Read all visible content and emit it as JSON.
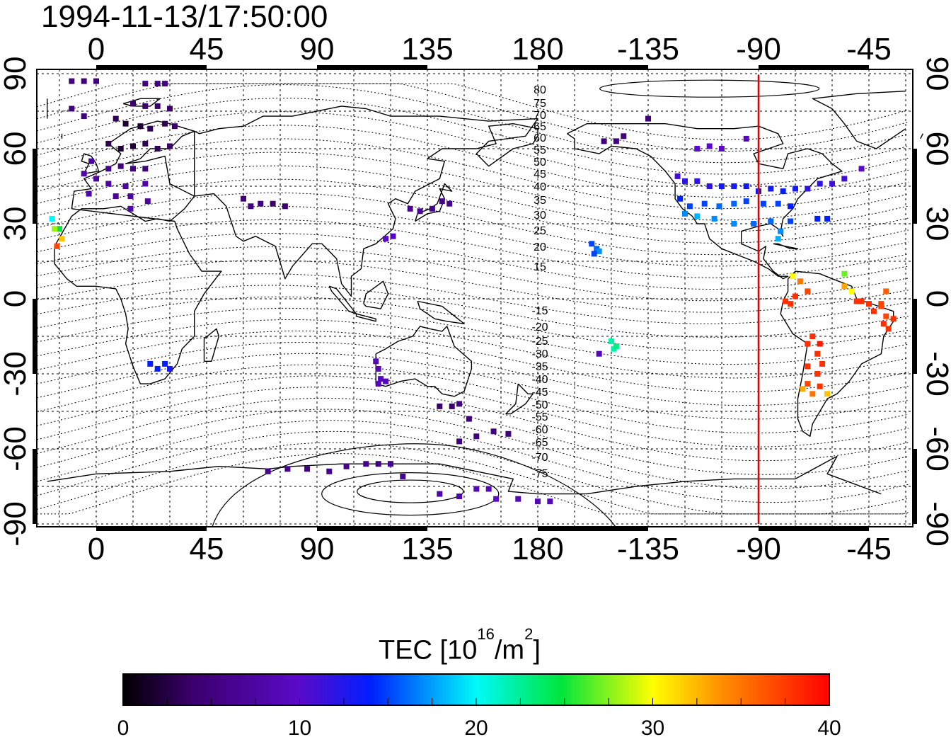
{
  "title": "1994-11-13/17:50:00",
  "map": {
    "lon_ticks": [
      "0",
      "45",
      "90",
      "135",
      "180",
      "-135",
      "-90",
      "-45"
    ],
    "lat_ticks": [
      "90",
      "60",
      "30",
      "0",
      "-30",
      "-60",
      "-90"
    ],
    "meridian_line_lon": -90,
    "meridian_line_color": "#e00000",
    "contour_labels": [
      "80",
      "75",
      "70",
      "65",
      "60",
      "55",
      "50",
      "45",
      "40",
      "35",
      "30",
      "25",
      "20",
      "15",
      "-15",
      "-20",
      "-25",
      "-30",
      "-35",
      "-40",
      "-45",
      "-50",
      "-55",
      "-60",
      "-65",
      "-70",
      "-75"
    ]
  },
  "colorbar": {
    "title_prefix": "TEC  [10",
    "title_sup1": "16",
    "title_mid": "/m",
    "title_sup2": "2",
    "title_suffix": "]",
    "tick_labels": [
      "0",
      "10",
      "20",
      "30",
      "40"
    ],
    "vmin": 0,
    "vmax": 40
  },
  "tec_points": [
    {
      "lon": -10,
      "lat": 87,
      "tec": 5
    },
    {
      "lon": -5,
      "lat": 87,
      "tec": 5
    },
    {
      "lon": 0,
      "lat": 87,
      "tec": 5
    },
    {
      "lon": 20,
      "lat": 86,
      "tec": 5
    },
    {
      "lon": 25,
      "lat": 86,
      "tec": 5
    },
    {
      "lon": 28,
      "lat": 86,
      "tec": 5
    },
    {
      "lon": -10,
      "lat": 76,
      "tec": 5
    },
    {
      "lon": -5,
      "lat": 73,
      "tec": 5
    },
    {
      "lon": 15,
      "lat": 78,
      "tec": 4
    },
    {
      "lon": 20,
      "lat": 77,
      "tec": 4
    },
    {
      "lon": 25,
      "lat": 77,
      "tec": 4
    },
    {
      "lon": 30,
      "lat": 76,
      "tec": 4
    },
    {
      "lon": 8,
      "lat": 72,
      "tec": 3
    },
    {
      "lon": 12,
      "lat": 70,
      "tec": 2
    },
    {
      "lon": 18,
      "lat": 69,
      "tec": 2
    },
    {
      "lon": 22,
      "lat": 68,
      "tec": 3
    },
    {
      "lon": 28,
      "lat": 70,
      "tec": 3
    },
    {
      "lon": 32,
      "lat": 69,
      "tec": 4
    },
    {
      "lon": 5,
      "lat": 62,
      "tec": 3
    },
    {
      "lon": 10,
      "lat": 60,
      "tec": 2
    },
    {
      "lon": 15,
      "lat": 61,
      "tec": 2
    },
    {
      "lon": 20,
      "lat": 62,
      "tec": 3
    },
    {
      "lon": 25,
      "lat": 60,
      "tec": 3
    },
    {
      "lon": 30,
      "lat": 61,
      "tec": 4
    },
    {
      "lon": -2,
      "lat": 55,
      "tec": 7
    },
    {
      "lon": 5,
      "lat": 52,
      "tec": 6
    },
    {
      "lon": 10,
      "lat": 53,
      "tec": 5
    },
    {
      "lon": 15,
      "lat": 52,
      "tec": 5
    },
    {
      "lon": 20,
      "lat": 52,
      "tec": 5
    },
    {
      "lon": -5,
      "lat": 50,
      "tec": 8
    },
    {
      "lon": 0,
      "lat": 48,
      "tec": 7
    },
    {
      "lon": 5,
      "lat": 46,
      "tec": 7
    },
    {
      "lon": 12,
      "lat": 45,
      "tec": 7
    },
    {
      "lon": 20,
      "lat": 46,
      "tec": 8
    },
    {
      "lon": -3,
      "lat": 42,
      "tec": 8
    },
    {
      "lon": 8,
      "lat": 41,
      "tec": 7
    },
    {
      "lon": 14,
      "lat": 41,
      "tec": 7
    },
    {
      "lon": 21,
      "lat": 39,
      "tec": 7
    },
    {
      "lon": 14,
      "lat": 36,
      "tec": 8
    },
    {
      "lon": 63,
      "lat": 37,
      "tec": 5
    },
    {
      "lon": 67,
      "lat": 38,
      "tec": 5
    },
    {
      "lon": 72,
      "lat": 38,
      "tec": 4
    },
    {
      "lon": 77,
      "lat": 37,
      "tec": 4
    },
    {
      "lon": 60,
      "lat": 40,
      "tec": 5
    },
    {
      "lon": 128,
      "lat": 36,
      "tec": 7
    },
    {
      "lon": 132,
      "lat": 35,
      "tec": 7
    },
    {
      "lon": 137,
      "lat": 36,
      "tec": 6
    },
    {
      "lon": 141,
      "lat": 39,
      "tec": 6
    },
    {
      "lon": 144,
      "lat": 38,
      "tec": 6
    },
    {
      "lon": 121,
      "lat": 25,
      "tec": 9
    },
    {
      "lon": 118,
      "lat": 24,
      "tec": 10
    },
    {
      "lon": -15,
      "lat": 28,
      "tec": 25
    },
    {
      "lon": -17,
      "lat": 28,
      "tec": 28
    },
    {
      "lon": -14,
      "lat": 24,
      "tec": 32
    },
    {
      "lon": -18,
      "lat": 32,
      "tec": 20
    },
    {
      "lon": -16,
      "lat": 21,
      "tec": 37
    },
    {
      "lon": 22,
      "lat": -26,
      "tec": 14
    },
    {
      "lon": 28,
      "lat": -26,
      "tec": 14
    },
    {
      "lon": 25,
      "lat": -28,
      "tec": 14
    },
    {
      "lon": 30,
      "lat": -28,
      "tec": 13
    },
    {
      "lon": 114,
      "lat": -25,
      "tec": 9
    },
    {
      "lon": 115,
      "lat": -28,
      "tec": 9
    },
    {
      "lon": 116,
      "lat": -32,
      "tec": 9
    },
    {
      "lon": 118,
      "lat": -33,
      "tec": 9
    },
    {
      "lon": 115,
      "lat": -34,
      "tec": 9
    },
    {
      "lon": 140,
      "lat": -43,
      "tec": 4
    },
    {
      "lon": 145,
      "lat": -43,
      "tec": 4
    },
    {
      "lon": 148,
      "lat": -42,
      "tec": 5
    },
    {
      "lon": 152,
      "lat": -48,
      "tec": 5
    },
    {
      "lon": 148,
      "lat": -57,
      "tec": 5
    },
    {
      "lon": 155,
      "lat": -55,
      "tec": 5
    },
    {
      "lon": 162,
      "lat": -53,
      "tec": 5
    },
    {
      "lon": 168,
      "lat": -54,
      "tec": 5
    },
    {
      "lon": 70,
      "lat": -69,
      "tec": 6
    },
    {
      "lon": 78,
      "lat": -68,
      "tec": 6
    },
    {
      "lon": 86,
      "lat": -68,
      "tec": 5
    },
    {
      "lon": 95,
      "lat": -69,
      "tec": 6
    },
    {
      "lon": 102,
      "lat": -67,
      "tec": 6
    },
    {
      "lon": 110,
      "lat": -66,
      "tec": 6
    },
    {
      "lon": 115,
      "lat": -66,
      "tec": 5
    },
    {
      "lon": 120,
      "lat": -66,
      "tec": 6
    },
    {
      "lon": 125,
      "lat": -71,
      "tec": 6
    },
    {
      "lon": 140,
      "lat": -78,
      "tec": 8
    },
    {
      "lon": 148,
      "lat": -79,
      "tec": 8
    },
    {
      "lon": 155,
      "lat": -76,
      "tec": 9
    },
    {
      "lon": 160,
      "lat": -76,
      "tec": 9
    },
    {
      "lon": 163,
      "lat": -80,
      "tec": 10
    },
    {
      "lon": 172,
      "lat": -80,
      "tec": 9
    },
    {
      "lon": 180,
      "lat": -81,
      "tec": 9
    },
    {
      "lon": 185,
      "lat": -81,
      "tec": 9
    },
    {
      "lon": -153,
      "lat": 63,
      "tec": 5
    },
    {
      "lon": -148,
      "lat": 63,
      "tec": 5
    },
    {
      "lon": -145,
      "lat": 65,
      "tec": 5
    },
    {
      "lon": -135,
      "lat": 72,
      "tec": 5
    },
    {
      "lon": -115,
      "lat": 60,
      "tec": 10
    },
    {
      "lon": -110,
      "lat": 61,
      "tec": 10
    },
    {
      "lon": -105,
      "lat": 60,
      "tec": 10
    },
    {
      "lon": -95,
      "lat": 64,
      "tec": 9
    },
    {
      "lon": -123,
      "lat": 49,
      "tec": 11
    },
    {
      "lon": -120,
      "lat": 47,
      "tec": 12
    },
    {
      "lon": -115,
      "lat": 47,
      "tec": 12
    },
    {
      "lon": -110,
      "lat": 45,
      "tec": 12
    },
    {
      "lon": -105,
      "lat": 45,
      "tec": 13
    },
    {
      "lon": -100,
      "lat": 45,
      "tec": 13
    },
    {
      "lon": -95,
      "lat": 45,
      "tec": 13
    },
    {
      "lon": -90,
      "lat": 43,
      "tec": 14
    },
    {
      "lon": -85,
      "lat": 44,
      "tec": 13
    },
    {
      "lon": -80,
      "lat": 43,
      "tec": 14
    },
    {
      "lon": -75,
      "lat": 44,
      "tec": 13
    },
    {
      "lon": -70,
      "lat": 44,
      "tec": 12
    },
    {
      "lon": -65,
      "lat": 46,
      "tec": 12
    },
    {
      "lon": -60,
      "lat": 46,
      "tec": 11
    },
    {
      "lon": -55,
      "lat": 48,
      "tec": 11
    },
    {
      "lon": -48,
      "lat": 52,
      "tec": 10
    },
    {
      "lon": -122,
      "lat": 40,
      "tec": 14
    },
    {
      "lon": -118,
      "lat": 37,
      "tec": 15
    },
    {
      "lon": -112,
      "lat": 38,
      "tec": 15
    },
    {
      "lon": -106,
      "lat": 37,
      "tec": 16
    },
    {
      "lon": -100,
      "lat": 38,
      "tec": 16
    },
    {
      "lon": -95,
      "lat": 39,
      "tec": 15
    },
    {
      "lon": -88,
      "lat": 38,
      "tec": 15
    },
    {
      "lon": -82,
      "lat": 38,
      "tec": 15
    },
    {
      "lon": -77,
      "lat": 37,
      "tec": 14
    },
    {
      "lon": -120,
      "lat": 34,
      "tec": 17
    },
    {
      "lon": -115,
      "lat": 33,
      "tec": 18
    },
    {
      "lon": -108,
      "lat": 32,
      "tec": 17
    },
    {
      "lon": -100,
      "lat": 30,
      "tec": 17
    },
    {
      "lon": -92,
      "lat": 30,
      "tec": 16
    },
    {
      "lon": -85,
      "lat": 31,
      "tec": 16
    },
    {
      "lon": -81,
      "lat": 27,
      "tec": 17
    },
    {
      "lon": -82,
      "lat": 24,
      "tec": 18
    },
    {
      "lon": -77,
      "lat": 31,
      "tec": 15
    },
    {
      "lon": -66,
      "lat": 32,
      "tec": 14
    },
    {
      "lon": -62,
      "lat": 32,
      "tec": 14
    },
    {
      "lon": -158,
      "lat": 22,
      "tec": 15
    },
    {
      "lon": -156,
      "lat": 20,
      "tec": 16
    },
    {
      "lon": -155,
      "lat": 19,
      "tec": 17
    },
    {
      "lon": -157,
      "lat": 18,
      "tec": 15
    },
    {
      "lon": -150,
      "lat": -17,
      "tec": 22
    },
    {
      "lon": -149,
      "lat": -20,
      "tec": 22
    },
    {
      "lon": -148,
      "lat": -19,
      "tec": 23
    },
    {
      "lon": -155,
      "lat": -22,
      "tec": 9
    },
    {
      "lon": -76,
      "lat": 9,
      "tec": 30
    },
    {
      "lon": -73,
      "lat": 7,
      "tec": 35
    },
    {
      "lon": -70,
      "lat": 3,
      "tec": 37
    },
    {
      "lon": -75,
      "lat": 1,
      "tec": 38
    },
    {
      "lon": -79,
      "lat": -1,
      "tec": 38
    },
    {
      "lon": -77,
      "lat": -2,
      "tec": 38
    },
    {
      "lon": -55,
      "lat": 5,
      "tec": 33
    },
    {
      "lon": -52,
      "lat": 3,
      "tec": 30
    },
    {
      "lon": -48,
      "lat": -1,
      "tec": 38
    },
    {
      "lon": -45,
      "lat": -2,
      "tec": 38
    },
    {
      "lon": -40,
      "lat": -3,
      "tec": 37
    },
    {
      "lon": -50,
      "lat": -1,
      "tec": 38
    },
    {
      "lon": -55,
      "lat": 10,
      "tec": 27
    },
    {
      "lon": -38,
      "lat": -7,
      "tec": 37
    },
    {
      "lon": -35,
      "lat": -8,
      "tec": 38
    },
    {
      "lon": -43,
      "lat": -5,
      "tec": 38
    },
    {
      "lon": -37,
      "lat": -12,
      "tec": 38
    },
    {
      "lon": -39,
      "lat": -10,
      "tec": 38
    },
    {
      "lon": -68,
      "lat": -15,
      "tec": 38
    },
    {
      "lon": -65,
      "lat": -18,
      "tec": 39
    },
    {
      "lon": -70,
      "lat": -18,
      "tec": 38
    },
    {
      "lon": -66,
      "lat": -22,
      "tec": 38
    },
    {
      "lon": -64,
      "lat": -26,
      "tec": 38
    },
    {
      "lon": -70,
      "lat": -27,
      "tec": 38
    },
    {
      "lon": -65,
      "lat": -35,
      "tec": 38
    },
    {
      "lon": -70,
      "lat": -34,
      "tec": 37
    },
    {
      "lon": -72,
      "lat": -36,
      "tec": 33
    },
    {
      "lon": -68,
      "lat": -38,
      "tec": 35
    },
    {
      "lon": -62,
      "lat": -38,
      "tec": 32
    },
    {
      "lon": -66,
      "lat": -30,
      "tec": 38
    },
    {
      "lon": -40,
      "lat": -2,
      "tec": 37
    },
    {
      "lon": -38,
      "lat": 3,
      "tec": 36
    }
  ]
}
